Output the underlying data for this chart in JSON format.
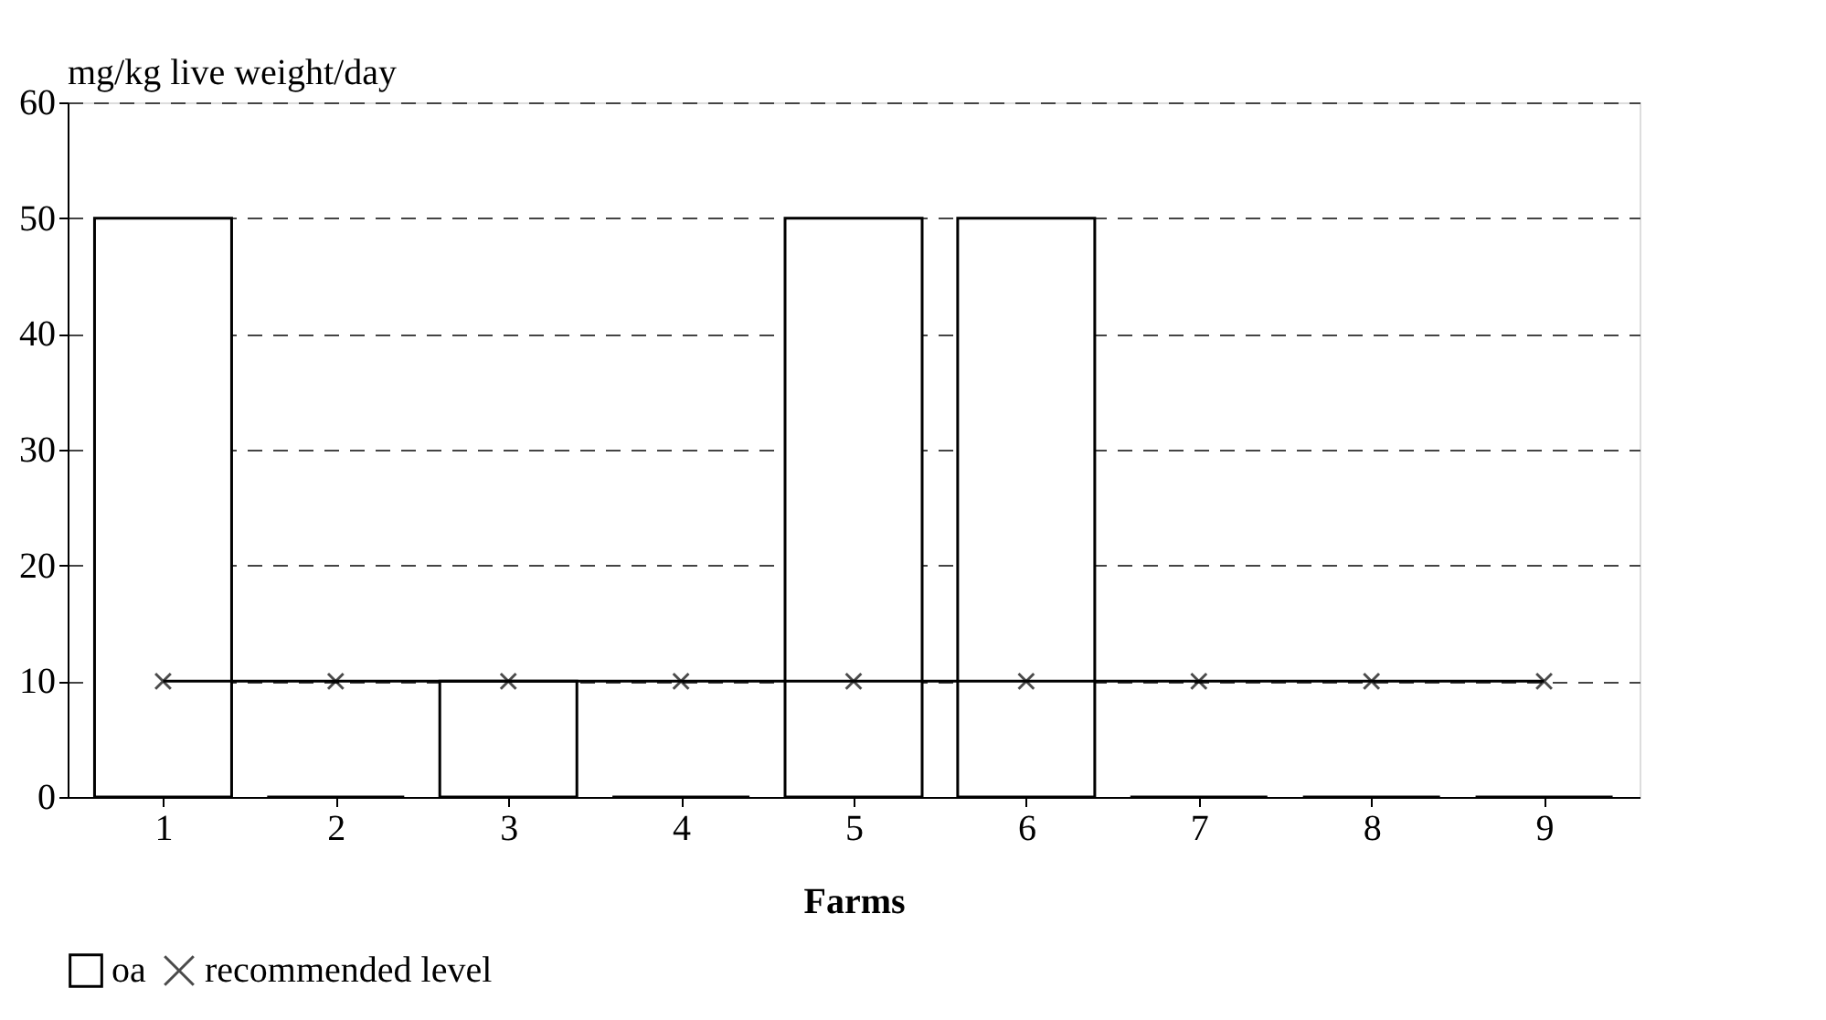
{
  "chart_data": {
    "type": "bar",
    "ylabel": "mg/kg live weight/day",
    "xlabel": "Farms",
    "categories": [
      "1",
      "2",
      "3",
      "4",
      "5",
      "6",
      "7",
      "8",
      "9"
    ],
    "series": [
      {
        "name": "oa",
        "color": "#000000",
        "values": [
          50,
          0,
          10,
          0,
          50,
          50,
          0,
          0,
          0
        ]
      },
      {
        "name": "recommended level",
        "type": "line",
        "color": "#000000",
        "marker": "cross",
        "values": [
          10,
          10,
          10,
          10,
          10,
          10,
          10,
          10,
          10
        ]
      }
    ],
    "ylim": [
      0,
      60
    ],
    "yticks": [
      0,
      10,
      20,
      30,
      40,
      50,
      60
    ],
    "grid": "y",
    "legend": "bottom left"
  }
}
